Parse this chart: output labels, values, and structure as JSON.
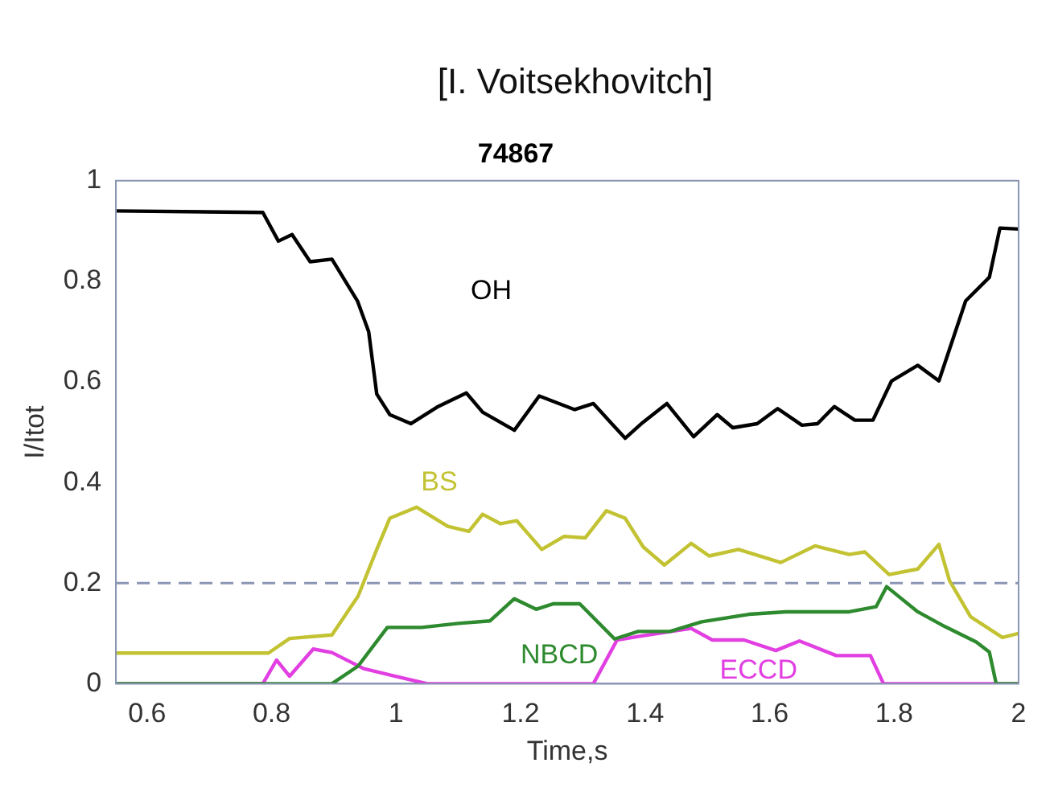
{
  "chart_data": {
    "type": "line",
    "title": "74867",
    "subtitle": "[I. Voitsekhovitch]",
    "xlabel": "Time,s",
    "ylabel": "I/Itot",
    "xlim": [
      0.55,
      2
    ],
    "xticks": [
      0.6,
      0.8,
      1,
      1.2,
      1.4,
      1.6,
      1.8,
      2
    ],
    "ylim": [
      0,
      1
    ],
    "yticks": [
      0,
      0.2,
      0.4,
      0.6,
      0.8,
      1
    ],
    "grid": false,
    "legend": false,
    "marker": "none",
    "line_style": "solid",
    "ref_lines": [
      {
        "axis": "y",
        "value": 0.2,
        "color": "#8a96b4",
        "line_style": "dashed"
      }
    ],
    "series": [
      {
        "name": "OH",
        "color": "#000000",
        "x": [
          0.55,
          0.786,
          0.811,
          0.833,
          0.862,
          0.897,
          0.938,
          0.956,
          0.969,
          0.99,
          1.024,
          1.066,
          1.113,
          1.139,
          1.19,
          1.23,
          1.287,
          1.317,
          1.368,
          1.396,
          1.435,
          1.478,
          1.516,
          1.541,
          1.58,
          1.613,
          1.652,
          1.677,
          1.704,
          1.737,
          1.766,
          1.796,
          1.838,
          1.872,
          1.915,
          1.953,
          1.97,
          2.0
        ],
        "values": [
          0.94,
          0.937,
          0.88,
          0.893,
          0.839,
          0.844,
          0.761,
          0.7,
          0.576,
          0.535,
          0.517,
          0.55,
          0.578,
          0.54,
          0.504,
          0.572,
          0.545,
          0.557,
          0.488,
          0.519,
          0.557,
          0.491,
          0.535,
          0.509,
          0.517,
          0.547,
          0.514,
          0.517,
          0.551,
          0.524,
          0.524,
          0.602,
          0.633,
          0.602,
          0.761,
          0.808,
          0.906,
          0.904
        ]
      },
      {
        "name": "BS",
        "color": "#c2c232",
        "x": [
          0.55,
          0.795,
          0.829,
          0.897,
          0.939,
          0.969,
          0.99,
          1.033,
          1.083,
          1.117,
          1.139,
          1.168,
          1.194,
          1.234,
          1.27,
          1.304,
          1.338,
          1.368,
          1.397,
          1.431,
          1.474,
          1.503,
          1.55,
          1.618,
          1.673,
          1.728,
          1.753,
          1.792,
          1.838,
          1.872,
          1.889,
          1.923,
          1.974,
          2.0
        ],
        "values": [
          0.061,
          0.061,
          0.09,
          0.097,
          0.174,
          0.267,
          0.329,
          0.351,
          0.313,
          0.303,
          0.337,
          0.318,
          0.324,
          0.267,
          0.293,
          0.29,
          0.344,
          0.329,
          0.272,
          0.236,
          0.279,
          0.254,
          0.267,
          0.241,
          0.274,
          0.257,
          0.262,
          0.217,
          0.228,
          0.277,
          0.205,
          0.133,
          0.092,
          0.1
        ]
      },
      {
        "name": "NBCD",
        "color": "#2e8a2e",
        "x": [
          0.55,
          0.897,
          0.939,
          0.986,
          1.041,
          1.1,
          1.151,
          1.19,
          1.225,
          1.253,
          1.295,
          1.351,
          1.389,
          1.44,
          1.491,
          1.567,
          1.626,
          1.728,
          1.771,
          1.788,
          1.838,
          1.881,
          1.932,
          1.953,
          1.964,
          2.0
        ],
        "values": [
          0,
          0,
          0.035,
          0.112,
          0.112,
          0.12,
          0.125,
          0.169,
          0.148,
          0.159,
          0.159,
          0.089,
          0.104,
          0.104,
          0.123,
          0.138,
          0.143,
          0.143,
          0.153,
          0.193,
          0.143,
          0.114,
          0.083,
          0.063,
          0,
          0
        ]
      },
      {
        "name": "ECCD",
        "color": "#e23fe2",
        "x": [
          0.55,
          0.786,
          0.808,
          0.829,
          0.867,
          0.897,
          0.948,
          0.999,
          1.05,
          1.317,
          1.355,
          1.389,
          1.474,
          1.508,
          1.559,
          1.61,
          1.648,
          1.707,
          1.762,
          1.783,
          2.0
        ],
        "values": [
          0,
          0,
          0.047,
          0.015,
          0.069,
          0.062,
          0.03,
          0.015,
          0,
          0,
          0.087,
          0.094,
          0.11,
          0.087,
          0.087,
          0.066,
          0.085,
          0.056,
          0.056,
          0,
          0
        ]
      }
    ]
  }
}
